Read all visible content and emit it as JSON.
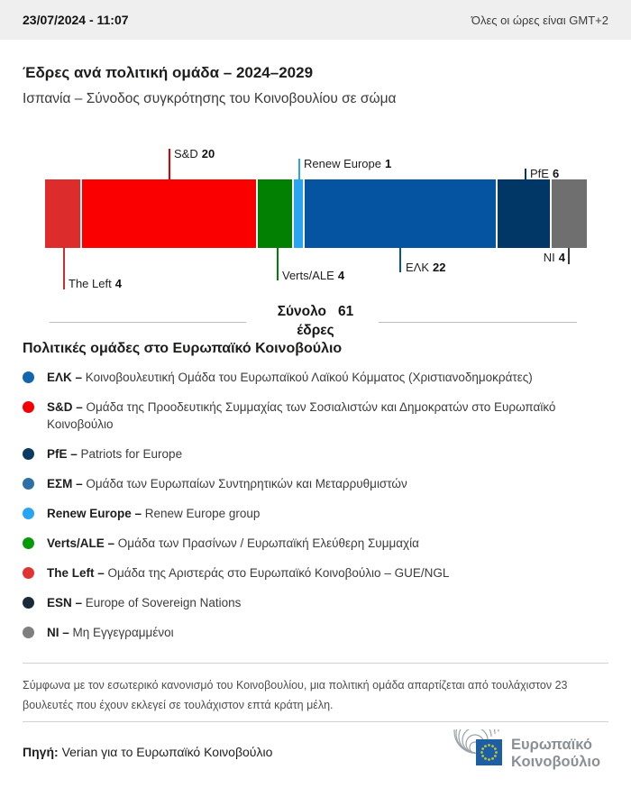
{
  "header": {
    "datetime": "23/07/2024 - 11:07",
    "timezone_note": "Όλες οι ώρες είναι GMT+2"
  },
  "title": "Έδρες ανά πολιτική ομάδα – 2024–2029",
  "subtitle": "Ισπανία – Σύνοδος συγκρότησης του Κοινοβουλίου σε σώμα",
  "chart_data": {
    "type": "bar",
    "variant": "stacked-horizontal-single-bar",
    "title": "Έδρες ανά πολιτική ομάδα – 2024–2029",
    "subtitle": "Ισπανία – Σύνοδος συγκρότησης του Κοινοβουλίου σε σώμα",
    "unit": "έδρες",
    "categories": [
      "The Left",
      "S&D",
      "Verts/ALE",
      "Renew Europe",
      "ΕΛΚ",
      "PfE",
      "NI"
    ],
    "values": [
      4,
      20,
      4,
      1,
      22,
      6,
      4
    ],
    "segments": [
      {
        "group": "The Left",
        "seats": 4,
        "color": "#dd2c2c",
        "callout": "below",
        "line_color": "#c63030"
      },
      {
        "group": "S&D",
        "seats": 20,
        "color": "#fa0000",
        "callout": "above",
        "line_color": "#e00000"
      },
      {
        "group": "Verts/ALE",
        "seats": 4,
        "color": "#028002",
        "callout": "below",
        "line_color": "#028002"
      },
      {
        "group": "Renew Europe",
        "seats": 1,
        "color": "#29a4f0",
        "callout": "above",
        "line_color": "#29a4f0"
      },
      {
        "group": "ΕΛΚ",
        "seats": 22,
        "color": "#0554a2",
        "callout": "below",
        "line_color": "#0554a2"
      },
      {
        "group": "PfE",
        "seats": 6,
        "color": "#003767",
        "callout": "above",
        "line_color": "#003767"
      },
      {
        "group": "NI",
        "seats": 4,
        "color": "#6f6f6f",
        "callout": "below",
        "line_color": "#3a3a3a"
      }
    ],
    "total": {
      "label": "Σύνολο",
      "value": "61",
      "unit_label": "έδρες"
    },
    "legend_position": "below",
    "grid": false,
    "xlim": [
      0,
      61
    ]
  },
  "legend": {
    "title": "Πολιτικές ομάδες στο Ευρωπαϊκό Κοινοβούλιο",
    "separator": " – ",
    "items": [
      {
        "abbr": "ΕΛΚ",
        "color": "#1565ae",
        "desc": "Κοινοβουλευτική Ομάδα του Ευρωπαϊκού Λαϊκού Κόμματος (Χριστιανοδημοκράτες)"
      },
      {
        "abbr": "S&D",
        "color": "#f40000",
        "desc": "Ομάδα της Προοδευτικής Συμμαχίας των Σοσιαλιστών και Δημοκρατών στο Ευρωπαϊκό Κοινοβούλιο"
      },
      {
        "abbr": "PfE",
        "color": "#0d3a63",
        "desc": "Patriots for Europe"
      },
      {
        "abbr": "ΕΣΜ",
        "color": "#2f6fa7",
        "desc": "Ομάδα των Ευρωπαίων Συντηρητικών και Μεταρρυθμιστών"
      },
      {
        "abbr": "Renew Europe",
        "color": "#29a4f0",
        "desc": "Renew Europe group"
      },
      {
        "abbr": "Verts/ALE",
        "color": "#089908",
        "desc": "Ομάδα των Πρασίνων / Ευρωπαϊκή Ελεύθερη Συμμαχία"
      },
      {
        "abbr": "The Left",
        "color": "#e23333",
        "desc": "Ομάδα της Αριστεράς στο Ευρωπαϊκό Κοινοβούλιο – GUE/NGL"
      },
      {
        "abbr": "ESN",
        "color": "#1b2a38",
        "desc": "Europe of Sovereign Nations"
      },
      {
        "abbr": "NI",
        "color": "#7f7f7f",
        "desc": "Μη Εγγεγραμμένοι"
      }
    ]
  },
  "footnote": "Σύμφωνα με τον εσωτερικό κανονισμό του Κοινοβουλίου, μια πολιτική ομάδα απαρτίζεται από τουλάχιστον 23 βουλευτές που έχουν εκλεγεί σε τουλάχιστον επτά κράτη μέλη.",
  "source": {
    "label": "Πηγή:",
    "text": "Verian για το Ευρωπαϊκό Κοινοβούλιο"
  },
  "logo": {
    "line1": "Ευρωπαϊκό",
    "line2": "Κοινοβούλιο"
  }
}
